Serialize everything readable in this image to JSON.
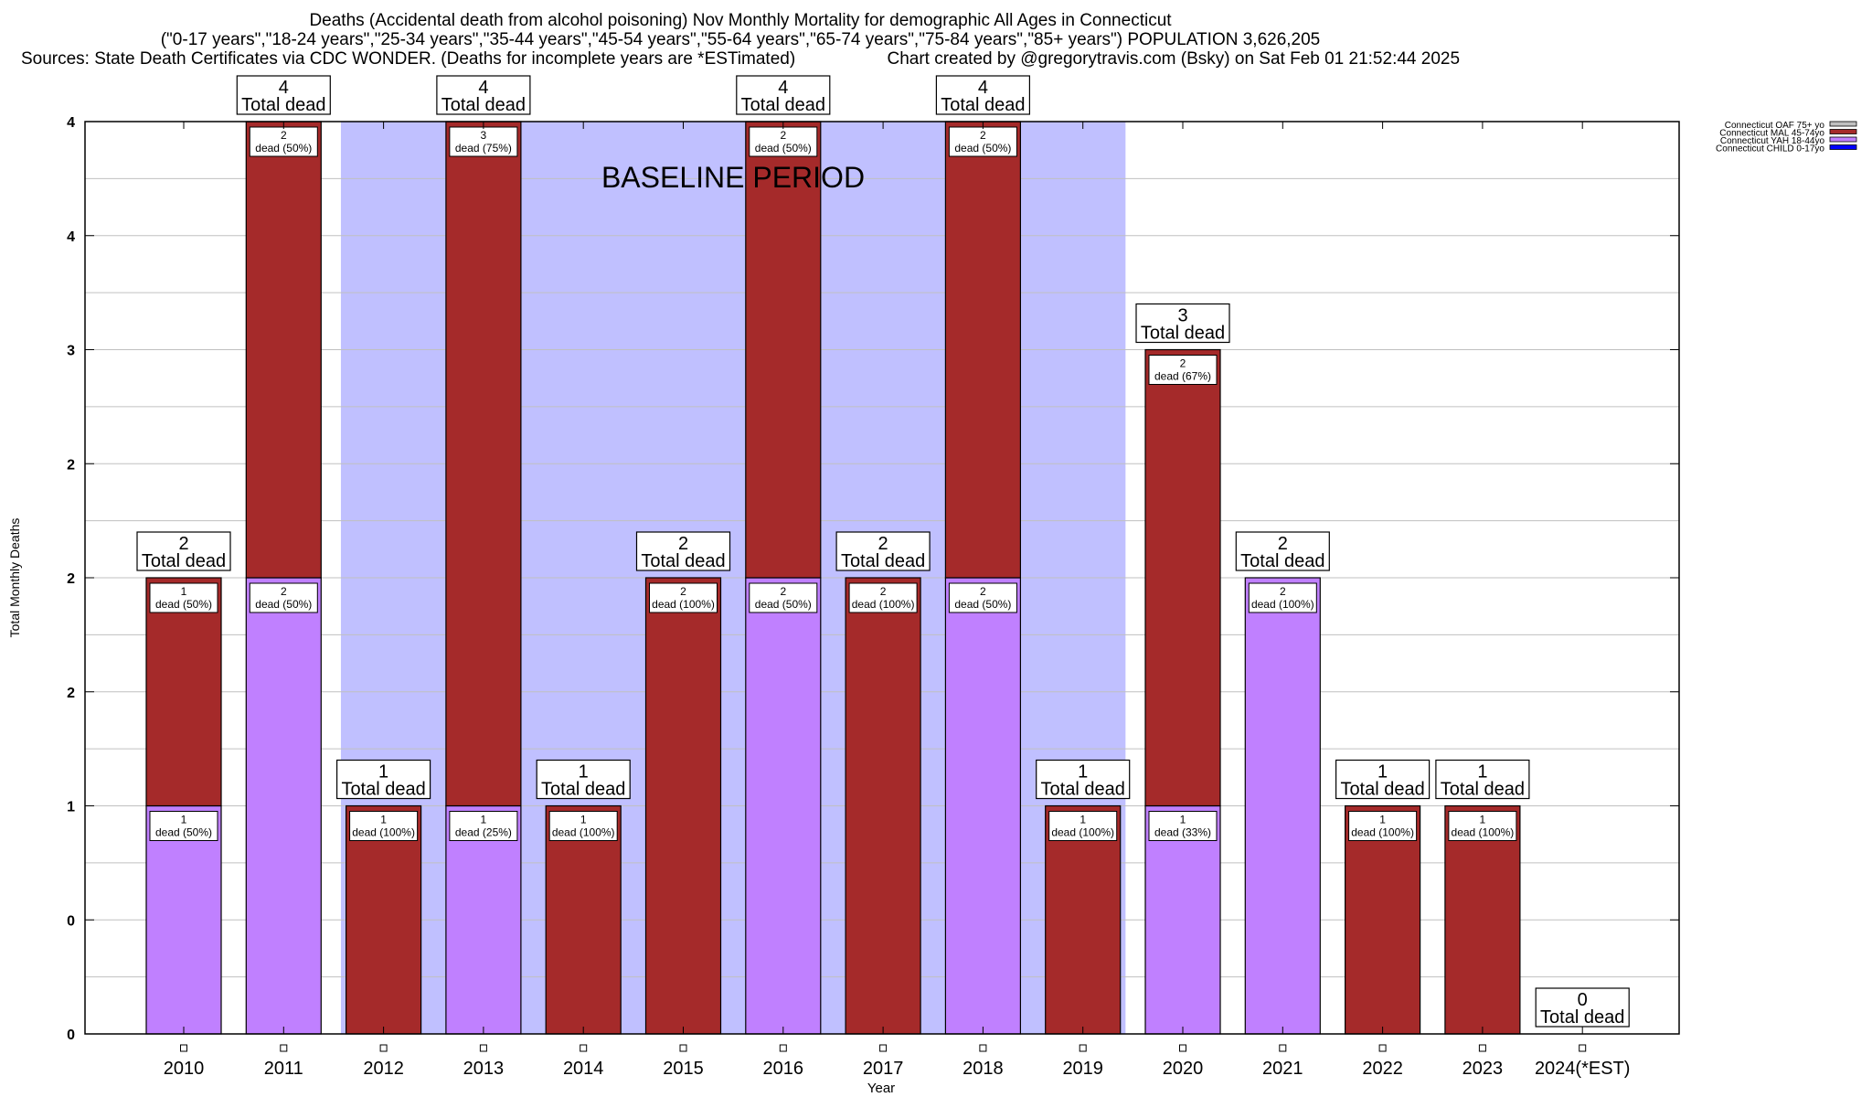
{
  "chart_data": {
    "type": "bar",
    "stacked": true,
    "title": "Deaths (Accidental death from alcohol poisoning) Nov Monthly Mortality for demographic All Ages in Connecticut",
    "subtitle": "(\"0-17 years\",\"18-24 years\",\"25-34 years\",\"35-44 years\",\"45-54 years\",\"55-64 years\",\"65-74 years\",\"75-84 years\",\"85+ years\") POPULATION 3,626,205",
    "source_left": "Sources: State Death Certificates via CDC WONDER. (Deaths for incomplete years are *ESTimated)",
    "source_right": "Chart created by @gregorytravis.com (Bsky) on Sat Feb 01 21:52:44 2025",
    "xlabel": "Year",
    "ylabel": "Total Monthly Deaths",
    "ylim": [
      0,
      4
    ],
    "grid": true,
    "legend_position": "top-right",
    "y_ticks": [
      {
        "value": 0,
        "label": "0"
      },
      {
        "value": 0.5,
        "label": "0"
      },
      {
        "value": 1,
        "label": "1"
      },
      {
        "value": 1.5,
        "label": "2"
      },
      {
        "value": 2,
        "label": "2"
      },
      {
        "value": 2.5,
        "label": "2"
      },
      {
        "value": 3,
        "label": "3"
      },
      {
        "value": 3.5,
        "label": "4"
      },
      {
        "value": 4,
        "label": "4"
      }
    ],
    "categories": [
      "2010",
      "2011",
      "2012",
      "2013",
      "2014",
      "2015",
      "2016",
      "2017",
      "2018",
      "2019",
      "2020",
      "2021",
      "2022",
      "2023",
      "2024(*EST)"
    ],
    "series": [
      {
        "name": "Connecticut CHILD 0-17yo",
        "color": "#0000ff",
        "values": [
          0,
          0,
          0,
          0,
          0,
          0,
          0,
          0,
          0,
          0,
          0,
          0,
          0,
          0,
          0
        ]
      },
      {
        "name": "Connecticut YAH 18-44yo",
        "color": "#c080ff",
        "values": [
          1,
          2,
          0,
          1,
          0,
          0,
          2,
          0,
          2,
          0,
          1,
          2,
          0,
          0,
          0
        ]
      },
      {
        "name": "Connecticut MAL 45-74yo",
        "color": "#a52a2a",
        "values": [
          1,
          2,
          1,
          3,
          1,
          2,
          2,
          2,
          2,
          1,
          2,
          0,
          1,
          1,
          0
        ]
      },
      {
        "name": "Connecticut OAF 75+ yo",
        "color": "#c0c0c0",
        "values": [
          0,
          0,
          0,
          0,
          0,
          0,
          0,
          0,
          0,
          0,
          0,
          0,
          0,
          0,
          0
        ]
      }
    ],
    "totals": [
      2,
      4,
      1,
      4,
      1,
      2,
      4,
      2,
      4,
      1,
      3,
      2,
      1,
      1,
      0
    ],
    "total_label_suffix": "Total dead",
    "segment_labels": [
      {
        "category": "2010",
        "series": "Connecticut YAH 18-44yo",
        "count": "1",
        "text": "dead (50%)"
      },
      {
        "category": "2010",
        "series": "Connecticut MAL 45-74yo",
        "count": "1",
        "text": "dead (50%)"
      },
      {
        "category": "2011",
        "series": "Connecticut YAH 18-44yo",
        "count": "2",
        "text": "dead (50%)"
      },
      {
        "category": "2011",
        "series": "Connecticut MAL 45-74yo",
        "count": "2",
        "text": "dead (50%)"
      },
      {
        "category": "2012",
        "series": "Connecticut MAL 45-74yo",
        "count": "1",
        "text": "dead (100%)"
      },
      {
        "category": "2013",
        "series": "Connecticut YAH 18-44yo",
        "count": "1",
        "text": "dead (25%)"
      },
      {
        "category": "2013",
        "series": "Connecticut MAL 45-74yo",
        "count": "3",
        "text": "dead (75%)"
      },
      {
        "category": "2014",
        "series": "Connecticut MAL 45-74yo",
        "count": "1",
        "text": "dead (100%)"
      },
      {
        "category": "2015",
        "series": "Connecticut MAL 45-74yo",
        "count": "2",
        "text": "dead (100%)"
      },
      {
        "category": "2016",
        "series": "Connecticut YAH 18-44yo",
        "count": "2",
        "text": "dead (50%)"
      },
      {
        "category": "2016",
        "series": "Connecticut MAL 45-74yo",
        "count": "2",
        "text": "dead (50%)"
      },
      {
        "category": "2017",
        "series": "Connecticut MAL 45-74yo",
        "count": "2",
        "text": "dead (100%)"
      },
      {
        "category": "2018",
        "series": "Connecticut YAH 18-44yo",
        "count": "2",
        "text": "dead (50%)"
      },
      {
        "category": "2018",
        "series": "Connecticut MAL 45-74yo",
        "count": "2",
        "text": "dead (50%)"
      },
      {
        "category": "2019",
        "series": "Connecticut MAL 45-74yo",
        "count": "1",
        "text": "dead (100%)"
      },
      {
        "category": "2020",
        "series": "Connecticut YAH 18-44yo",
        "count": "1",
        "text": "dead (33%)"
      },
      {
        "category": "2020",
        "series": "Connecticut MAL 45-74yo",
        "count": "2",
        "text": "dead (67%)"
      },
      {
        "category": "2021",
        "series": "Connecticut YAH 18-44yo",
        "count": "2",
        "text": "dead (100%)"
      },
      {
        "category": "2022",
        "series": "Connecticut MAL 45-74yo",
        "count": "1",
        "text": "dead (100%)"
      },
      {
        "category": "2023",
        "series": "Connecticut MAL 45-74yo",
        "count": "1",
        "text": "dead (100%)"
      }
    ],
    "annotations": [
      {
        "text": "BASELINE PERIOD",
        "from_category": "2012",
        "to_category": "2019",
        "color": "#c0c0ff"
      }
    ]
  }
}
